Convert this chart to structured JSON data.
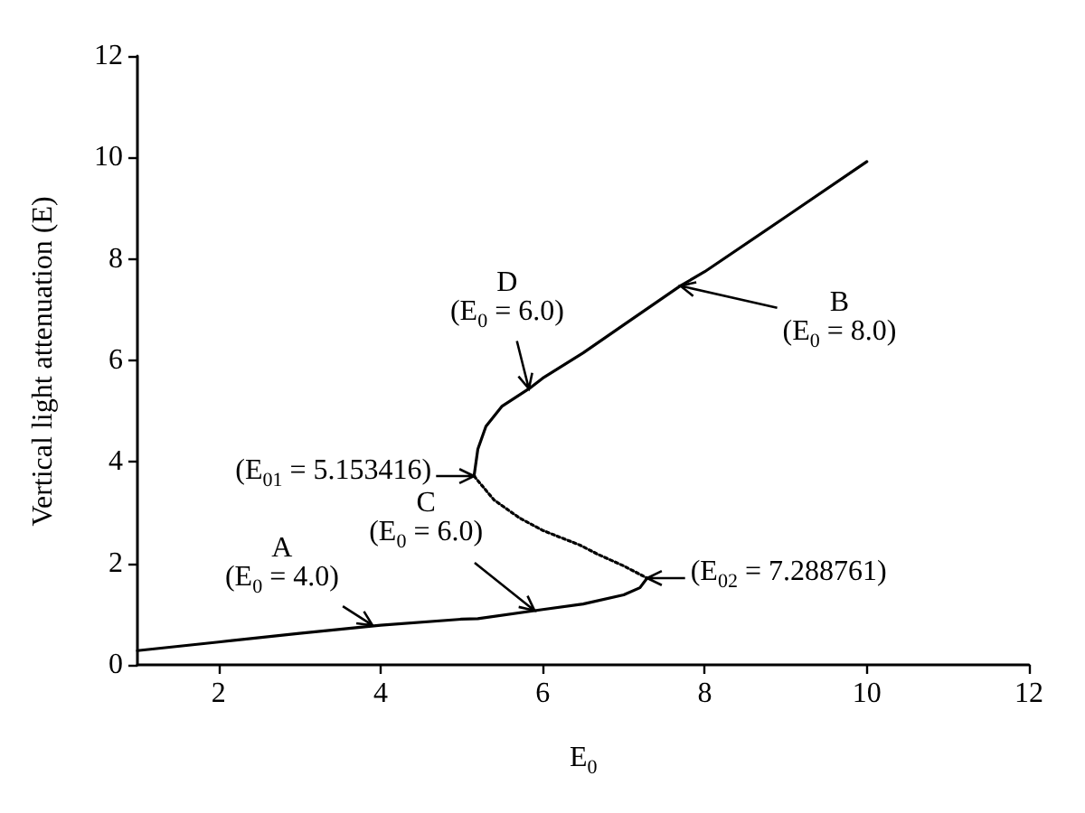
{
  "chart_data": {
    "type": "line",
    "xlabel": "E$_{0}$",
    "ylabel": "Vertical light attenuation (E)",
    "xlim": [
      1,
      12
    ],
    "xticks": [
      2,
      4,
      6,
      8,
      10,
      12
    ],
    "ylim": [
      0,
      12
    ],
    "yticks": [
      0,
      2,
      4,
      6,
      8,
      10,
      12
    ],
    "grid": false,
    "marker": "none",
    "series": [
      {
        "color": "#000000",
        "line_style": "solid",
        "x": [
          1,
          2,
          3,
          4,
          5,
          5.2,
          6,
          6.5,
          7,
          7.2,
          7.288761
        ],
        "values": [
          0.28,
          0.45,
          0.62,
          0.78,
          0.9,
          0.91,
          1.09,
          1.2,
          1.38,
          1.52,
          1.71
        ]
      },
      {
        "color": "#000000",
        "line_style": "solid",
        "x": [
          5.153416,
          5.2,
          5.3,
          5.5,
          5.83,
          6,
          6.5,
          7,
          7.7,
          8,
          9,
          10
        ],
        "values": [
          3.72,
          4.25,
          4.7,
          5.1,
          5.44,
          5.65,
          6.15,
          6.7,
          7.47,
          7.75,
          8.83,
          9.92
        ]
      },
      {
        "color": "#000000",
        "line_style": "dotted",
        "x": [
          5.153416,
          5.4,
          5.71,
          6,
          6.46,
          6.68,
          7,
          7.288761
        ],
        "values": [
          3.72,
          3.25,
          2.9,
          2.65,
          2.36,
          2.18,
          1.95,
          1.71
        ]
      }
    ],
    "annotations": [
      {
        "text": "A\n(E$_{0}$ = 4.0)",
        "x": 3.9,
        "y": 0.78
      },
      {
        "text": "C\n(E$_{0}$ = 6.0)",
        "x": 5.9,
        "y": 1.07
      },
      {
        "text": "D\n(E$_{0}$ = 6.0)",
        "x": 5.83,
        "y": 5.44
      },
      {
        "text": "B\n(E$_{0}$ = 8.0)",
        "x": 7.7,
        "y": 7.47
      },
      {
        "text": "(E$_{01}$ = 5.153416)",
        "x": 5.153416,
        "y": 3.72
      },
      {
        "text": "(E$_{02}$ = 7.288761)",
        "x": 7.288761,
        "y": 1.71
      }
    ]
  }
}
